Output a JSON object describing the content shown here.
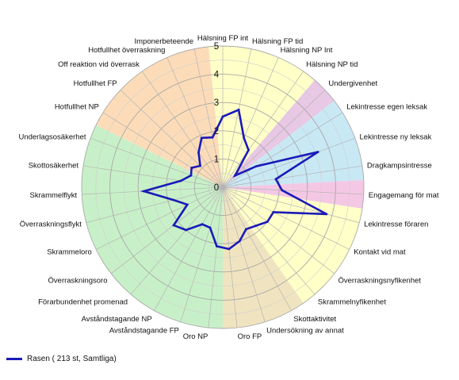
{
  "chart_data": {
    "type": "radar",
    "categories": [
      "Hälsning FP int",
      "Hälsning FP tid",
      "Hälsning NP Int",
      "Hälsning NP tid",
      "Undergivenhet",
      "Lekintresse egen leksak",
      "Lekintresse ny leksak",
      "Dragkampsintresse",
      "Engagemang för mat",
      "Lekintresse föraren",
      "Kontakt vid mat",
      "Överraskningsnyfikenhet",
      "Skrammelnyfikenhet",
      "Skottaktivitet",
      "Undersökning av annat",
      "Oro FP",
      "Oro NP",
      "Avståndstagande FP",
      "Avståndstagande NP",
      "Förarbundenhet promenad",
      "Överraskningsoro",
      "Skrammeloro",
      "Överraskningsflykt",
      "Skrammelflykt",
      "Skottosäkerhet",
      "Underlagsosäkerhet",
      "Hotfullhet NP",
      "Hotfullhet FP",
      "Off reaktion vid överrask",
      "Hotfullhet överraskning",
      "Imponerbeteende"
    ],
    "rlim": [
      0,
      5
    ],
    "ticks": [
      "0",
      "1",
      "2",
      "3",
      "4",
      "5"
    ],
    "grid": true,
    "series": [
      {
        "name": "Rasen ( 213 st, Samtliga)",
        "color": "#1a1ab8",
        "values": [
          2.5,
          2.8,
          1.9,
          1.6,
          0.6,
          1.4,
          3.6,
          1.9,
          2.1,
          3.8,
          2.0,
          2.0,
          1.8,
          1.7,
          2.0,
          2.2,
          2.1,
          1.5,
          1.5,
          2.0,
          2.2,
          1.4,
          1.8,
          2.8,
          1.5,
          1.2,
          1.3,
          1.1,
          1.5,
          1.9,
          1.8
        ]
      }
    ],
    "sectors": [
      {
        "from": 0,
        "to": 3,
        "color": "#ffffc8"
      },
      {
        "from": 4,
        "to": 4,
        "color": "#e8c8e4"
      },
      {
        "from": 5,
        "to": 7,
        "color": "#c8e8f4"
      },
      {
        "from": 8,
        "to": 8,
        "color": "#f4c8e4"
      },
      {
        "from": 9,
        "to": 12,
        "color": "#ffffc8"
      },
      {
        "from": 13,
        "to": 15,
        "color": "#f0e4c0"
      },
      {
        "from": 16,
        "to": 25,
        "color": "#c8f0c8"
      },
      {
        "from": 26,
        "to": 30,
        "color": "#fcdcb8"
      }
    ],
    "legend": {
      "position": "bottom-left"
    }
  }
}
